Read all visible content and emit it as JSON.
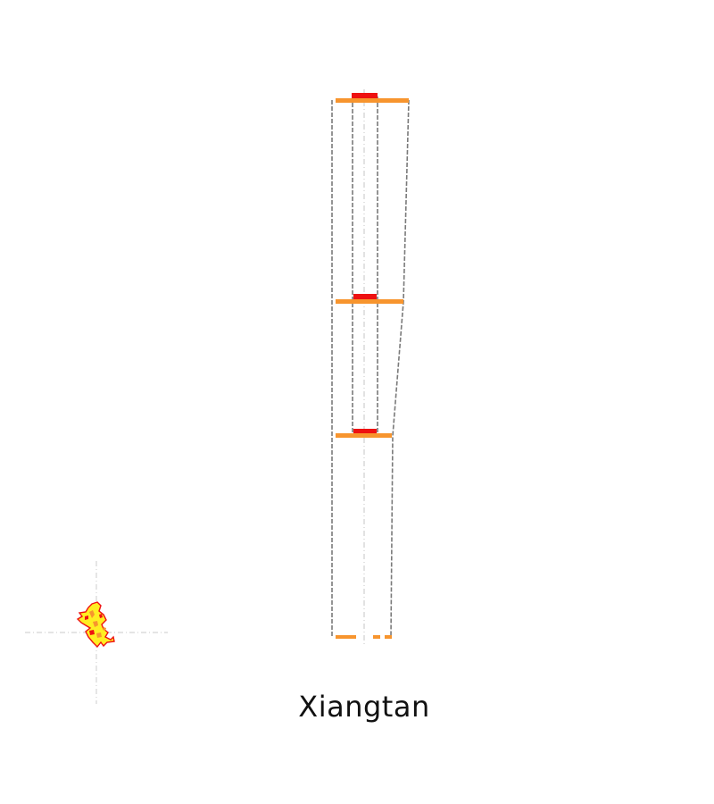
{
  "title": "Xiangtan",
  "colors": {
    "outline": "#7a7a7a",
    "centerline": "#cfcfcf",
    "orange": "#f7952e",
    "red": "#ee1111",
    "yellow": "#ffee22"
  }
}
